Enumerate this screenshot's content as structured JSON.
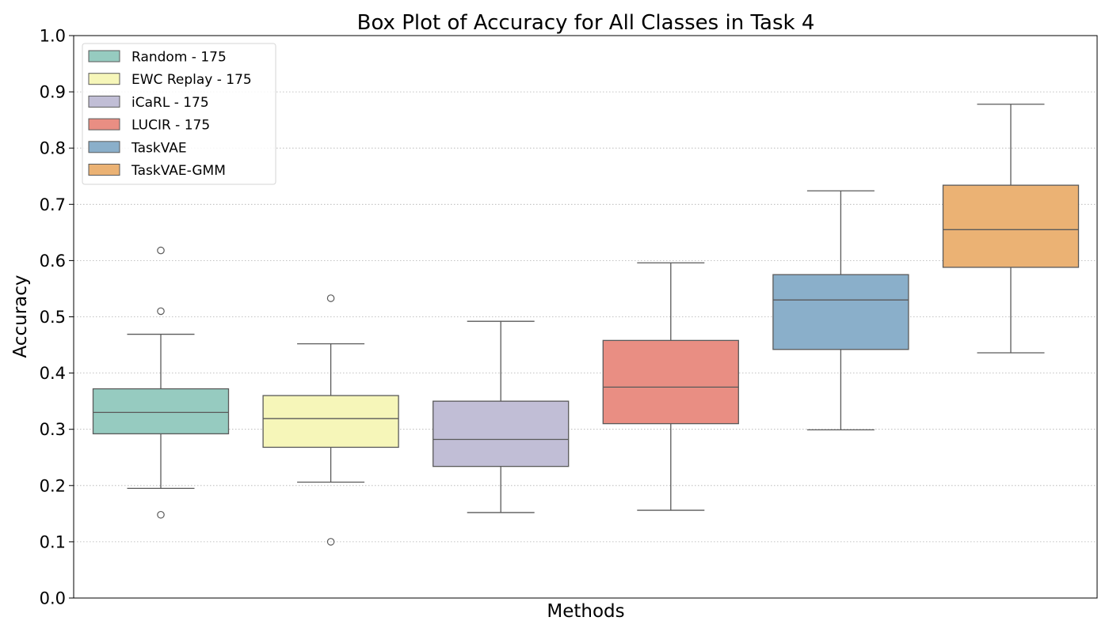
{
  "chart_data": {
    "type": "box",
    "title": "Box Plot of Accuracy for All Classes in Task 4",
    "xlabel": "Methods",
    "ylabel": "Accuracy",
    "ylim": [
      0.0,
      1.0
    ],
    "yticks": [
      "0.0",
      "0.1",
      "0.2",
      "0.3",
      "0.4",
      "0.5",
      "0.6",
      "0.7",
      "0.8",
      "0.9",
      "1.0"
    ],
    "grid": "horizontal, dotted",
    "legend_position": "top-left",
    "series": [
      {
        "name": "Random - 175",
        "color": "#96cbc0",
        "whisker_low": 0.195,
        "q1": 0.292,
        "median": 0.33,
        "q3": 0.372,
        "whisker_high": 0.469,
        "outliers": [
          0.618,
          0.51,
          0.148
        ]
      },
      {
        "name": "EWC Replay - 175",
        "color": "#f6f6b9",
        "whisker_low": 0.206,
        "q1": 0.268,
        "median": 0.319,
        "q3": 0.36,
        "whisker_high": 0.452,
        "outliers": [
          0.533,
          0.1
        ]
      },
      {
        "name": "iCaRL - 175",
        "color": "#c1bed6",
        "whisker_low": 0.152,
        "q1": 0.234,
        "median": 0.282,
        "q3": 0.35,
        "whisker_high": 0.492,
        "outliers": []
      },
      {
        "name": "LUCIR - 175",
        "color": "#e98e83",
        "whisker_low": 0.156,
        "q1": 0.31,
        "median": 0.375,
        "q3": 0.458,
        "whisker_high": 0.596,
        "outliers": []
      },
      {
        "name": "TaskVAE",
        "color": "#8aafca",
        "whisker_low": 0.299,
        "q1": 0.442,
        "median": 0.53,
        "q3": 0.575,
        "whisker_high": 0.724,
        "outliers": []
      },
      {
        "name": "TaskVAE-GMM",
        "color": "#ebb274",
        "whisker_low": 0.436,
        "q1": 0.588,
        "median": 0.655,
        "q3": 0.734,
        "whisker_high": 0.878,
        "outliers": []
      }
    ]
  }
}
